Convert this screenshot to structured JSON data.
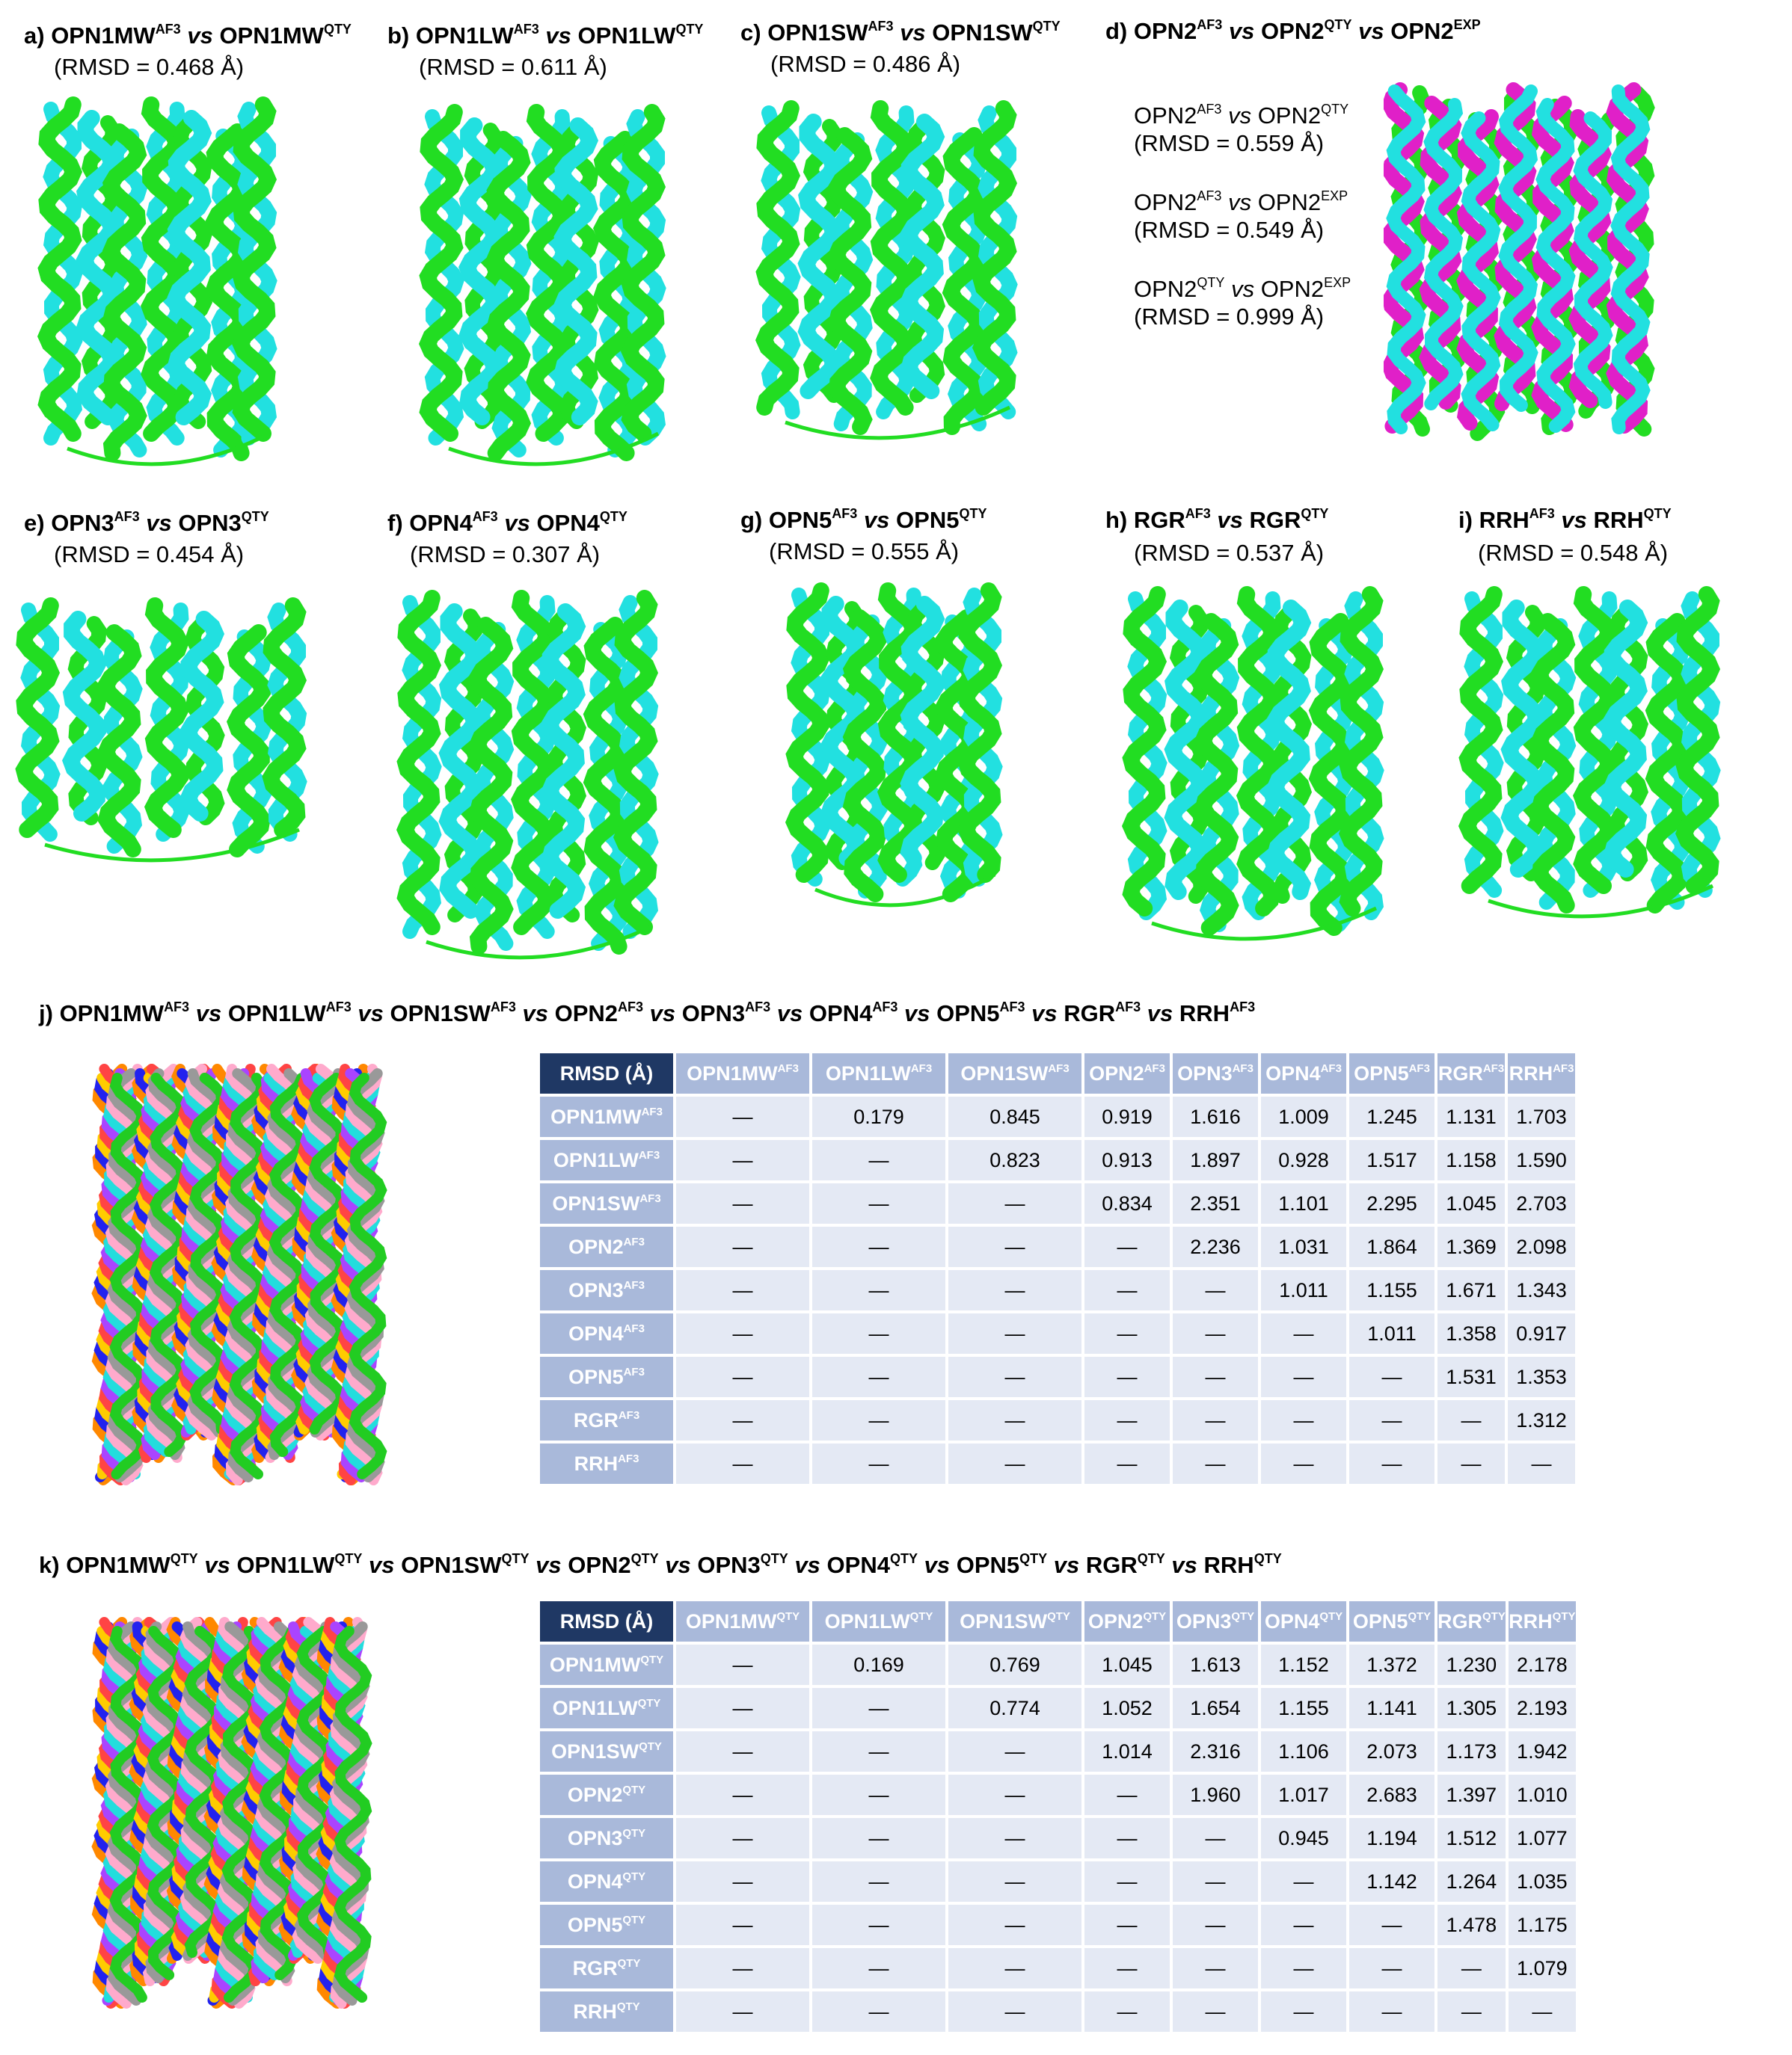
{
  "colors": {
    "green": "#22dd22",
    "cyan": "#22e0e0",
    "magenta": "#e020c8",
    "header_dark": "#1f3864",
    "header_light": "#a9b9da",
    "cell": "#e4e9f4"
  },
  "panels": [
    {
      "id": "a",
      "prefix": "a) ",
      "p1": "OPN1MW",
      "s1": "AF3",
      "p2": "OPN1MW",
      "s2": "QTY",
      "rmsd": "(RMSD = 0.468 Å)"
    },
    {
      "id": "b",
      "prefix": "b) ",
      "p1": "OPN1LW",
      "s1": "AF3",
      "p2": "OPN1LW",
      "s2": "QTY",
      "rmsd": "(RMSD = 0.611 Å)"
    },
    {
      "id": "c",
      "prefix": "c) ",
      "p1": "OPN1SW",
      "s1": "AF3",
      "p2": "OPN1SW",
      "s2": "QTY",
      "rmsd": "(RMSD = 0.486 Å)"
    },
    {
      "id": "d",
      "prefix": "d) ",
      "p1": "OPN2",
      "s1": "AF3",
      "p2": "OPN2",
      "s2": "QTY",
      "p3": "OPN2",
      "s3": "EXP",
      "notes": [
        {
          "a": "OPN2",
          "as": "AF3",
          "b": "OPN2",
          "bs": "QTY",
          "rmsd": "(RMSD = 0.559 Å)"
        },
        {
          "a": "OPN2",
          "as": "AF3",
          "b": "OPN2",
          "bs": "EXP",
          "rmsd": "(RMSD = 0.549 Å)"
        },
        {
          "a": "OPN2",
          "as": "QTY",
          "b": "OPN2",
          "bs": "EXP",
          "rmsd": "(RMSD = 0.999 Å)"
        }
      ]
    },
    {
      "id": "e",
      "prefix": "e) ",
      "p1": "OPN3",
      "s1": "AF3",
      "p2": "OPN3",
      "s2": "QTY",
      "rmsd": "(RMSD = 0.454 Å)"
    },
    {
      "id": "f",
      "prefix": "f) ",
      "p1": "OPN4",
      "s1": "AF3",
      "p2": "OPN4",
      "s2": "QTY",
      "rmsd": "(RMSD = 0.307 Å)"
    },
    {
      "id": "g",
      "prefix": "g) ",
      "p1": "OPN5",
      "s1": "AF3",
      "p2": "OPN5",
      "s2": "QTY",
      "rmsd": "(RMSD = 0.555 Å)"
    },
    {
      "id": "h",
      "prefix": "h) ",
      "p1": "RGR",
      "s1": "AF3",
      "p2": "RGR",
      "s2": "QTY",
      "rmsd": "(RMSD = 0.537 Å)"
    },
    {
      "id": "i",
      "prefix": "i) ",
      "p1": "RRH",
      "s1": "AF3",
      "p2": "RRH",
      "s2": "QTY",
      "rmsd": "(RMSD = 0.548 Å)"
    }
  ],
  "vs": "vs",
  "names": [
    "OPN1MW",
    "OPN1LW",
    "OPN1SW",
    "OPN2",
    "OPN3",
    "OPN4",
    "OPN5",
    "RGR",
    "RRH"
  ],
  "table_j": {
    "prefix": "j) ",
    "sup": "AF3",
    "corner": "RMSD (Å)",
    "rows": [
      [
        "—",
        "0.179",
        "0.845",
        "0.919",
        "1.616",
        "1.009",
        "1.245",
        "1.131",
        "1.703"
      ],
      [
        "—",
        "—",
        "0.823",
        "0.913",
        "1.897",
        "0.928",
        "1.517",
        "1.158",
        "1.590"
      ],
      [
        "—",
        "—",
        "—",
        "0.834",
        "2.351",
        "1.101",
        "2.295",
        "1.045",
        "2.703"
      ],
      [
        "—",
        "—",
        "—",
        "—",
        "2.236",
        "1.031",
        "1.864",
        "1.369",
        "2.098"
      ],
      [
        "—",
        "—",
        "—",
        "—",
        "—",
        "1.011",
        "1.155",
        "1.671",
        "1.343"
      ],
      [
        "—",
        "—",
        "—",
        "—",
        "—",
        "—",
        "1.011",
        "1.358",
        "0.917"
      ],
      [
        "—",
        "—",
        "—",
        "—",
        "—",
        "—",
        "—",
        "1.531",
        "1.353"
      ],
      [
        "—",
        "—",
        "—",
        "—",
        "—",
        "—",
        "—",
        "—",
        "1.312"
      ],
      [
        "—",
        "—",
        "—",
        "—",
        "—",
        "—",
        "—",
        "—",
        "—"
      ]
    ]
  },
  "table_k": {
    "prefix": "k) ",
    "sup": "QTY",
    "corner": "RMSD (Å)",
    "rows": [
      [
        "—",
        "0.169",
        "0.769",
        "1.045",
        "1.613",
        "1.152",
        "1.372",
        "1.230",
        "2.178"
      ],
      [
        "—",
        "—",
        "0.774",
        "1.052",
        "1.654",
        "1.155",
        "1.141",
        "1.305",
        "2.193"
      ],
      [
        "—",
        "—",
        "—",
        "1.014",
        "2.316",
        "1.106",
        "2.073",
        "1.173",
        "1.942"
      ],
      [
        "—",
        "—",
        "—",
        "—",
        "1.960",
        "1.017",
        "2.683",
        "1.397",
        "1.010"
      ],
      [
        "—",
        "—",
        "—",
        "—",
        "—",
        "0.945",
        "1.194",
        "1.512",
        "1.077"
      ],
      [
        "—",
        "—",
        "—",
        "—",
        "—",
        "—",
        "1.142",
        "1.264",
        "1.035"
      ],
      [
        "—",
        "—",
        "—",
        "—",
        "—",
        "—",
        "—",
        "1.478",
        "1.175"
      ],
      [
        "—",
        "—",
        "—",
        "—",
        "—",
        "—",
        "—",
        "—",
        "1.079"
      ],
      [
        "—",
        "—",
        "—",
        "—",
        "—",
        "—",
        "—",
        "—",
        "—"
      ]
    ]
  }
}
